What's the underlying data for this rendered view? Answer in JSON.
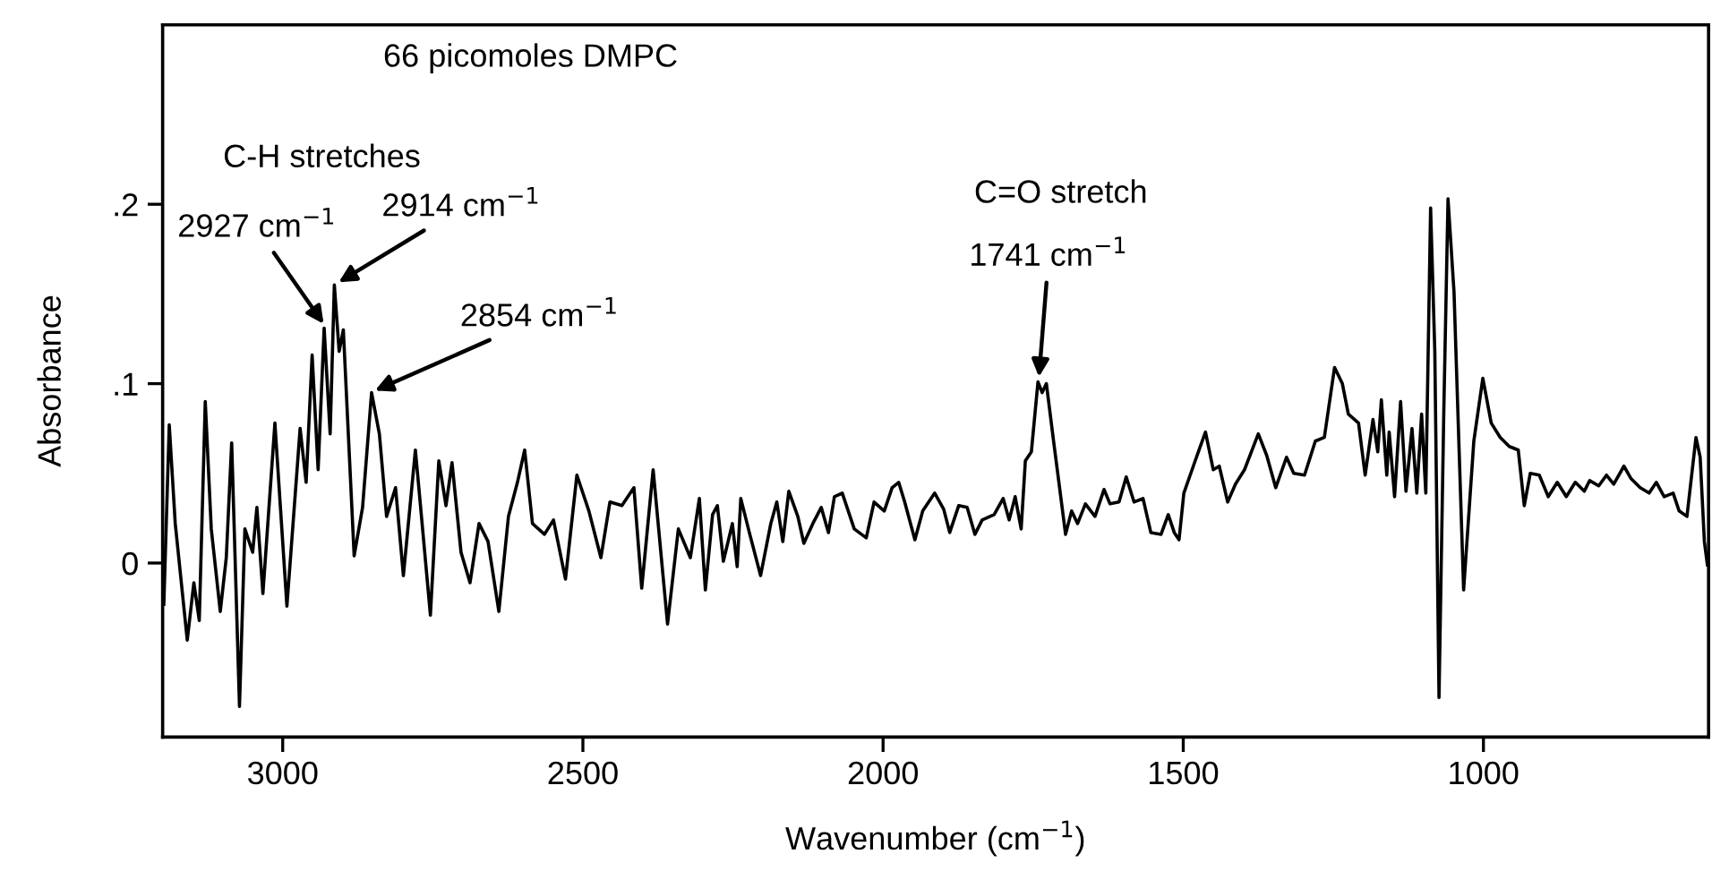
{
  "chart_data": {
    "type": "line",
    "xlabel": "Wavenumber (cm$^{−1}$)",
    "ylabel": "Absorbance",
    "x": [
      3198,
      3189,
      3179,
      3159,
      3148,
      3139,
      3129,
      3119,
      3104,
      3094,
      3085,
      3072,
      3063,
      3050,
      3043,
      3033,
      3013,
      3004,
      2993,
      2971,
      2961,
      2951,
      2941,
      2931,
      2921,
      2914,
      2906,
      2899,
      2881,
      2867,
      2852,
      2839,
      2827,
      2812,
      2799,
      2779,
      2767,
      2754,
      2740,
      2728,
      2718,
      2703,
      2688,
      2673,
      2658,
      2640,
      2624,
      2609,
      2597,
      2584,
      2564,
      2549,
      2529,
      2510,
      2490,
      2470,
      2455,
      2435,
      2415,
      2402,
      2383,
      2359,
      2341,
      2321,
      2306,
      2296,
      2284,
      2276,
      2266,
      2251,
      2243,
      2237,
      2222,
      2204,
      2187,
      2177,
      2167,
      2157,
      2142,
      2132,
      2117,
      2103,
      2091,
      2081,
      2068,
      2048,
      2028,
      2015,
      1998,
      1985,
      1974,
      1964,
      1947,
      1934,
      1914,
      1899,
      1889,
      1874,
      1860,
      1847,
      1835,
      1815,
      1800,
      1790,
      1780,
      1770,
      1763,
      1753,
      1742,
      1735,
      1728,
      1716,
      1696,
      1686,
      1676,
      1663,
      1647,
      1632,
      1622,
      1607,
      1595,
      1582,
      1567,
      1554,
      1537,
      1525,
      1515,
      1507,
      1499,
      1478,
      1463,
      1450,
      1440,
      1426,
      1413,
      1398,
      1375,
      1361,
      1346,
      1328,
      1316,
      1298,
      1280,
      1265,
      1248,
      1235,
      1225,
      1208,
      1197,
      1184,
      1176,
      1170,
      1161,
      1157,
      1148,
      1138,
      1129,
      1119,
      1111,
      1103,
      1096,
      1088,
      1081,
      1074,
      1066,
      1059,
      1049,
      1033,
      1016,
      1001,
      987,
      972,
      957,
      942,
      932,
      922,
      907,
      892,
      877,
      862,
      847,
      832,
      823,
      808,
      795,
      783,
      766,
      754,
      739,
      724,
      712,
      699,
      684,
      674,
      661,
      646,
      639,
      632,
      627
    ],
    "series": [
      {
        "color": "#000000",
        "values": [
          -0.023,
          0.077,
          0.022,
          -0.043,
          -0.011,
          -0.032,
          0.09,
          0.019,
          -0.027,
          0.003,
          0.067,
          -0.08,
          0.019,
          0.006,
          0.031,
          -0.017,
          0.078,
          0.032,
          -0.024,
          0.075,
          0.045,
          0.116,
          0.052,
          0.131,
          0.072,
          0.155,
          0.118,
          0.13,
          0.004,
          0.031,
          0.095,
          0.072,
          0.026,
          0.042,
          -0.007,
          0.063,
          0.019,
          -0.029,
          0.057,
          0.032,
          0.056,
          0.006,
          -0.011,
          0.022,
          0.012,
          -0.027,
          0.026,
          0.045,
          0.063,
          0.022,
          0.016,
          0.024,
          -0.009,
          0.049,
          0.029,
          0.003,
          0.034,
          0.032,
          0.042,
          -0.014,
          0.052,
          -0.034,
          0.019,
          0.003,
          0.036,
          -0.015,
          0.027,
          0.032,
          0.001,
          0.022,
          -0.002,
          0.036,
          0.016,
          -0.007,
          0.022,
          0.034,
          0.012,
          0.04,
          0.026,
          0.011,
          0.022,
          0.031,
          0.017,
          0.037,
          0.039,
          0.019,
          0.014,
          0.034,
          0.029,
          0.042,
          0.045,
          0.034,
          0.013,
          0.029,
          0.039,
          0.03,
          0.017,
          0.032,
          0.031,
          0.016,
          0.024,
          0.027,
          0.036,
          0.024,
          0.037,
          0.019,
          0.057,
          0.062,
          0.101,
          0.095,
          0.1,
          0.068,
          0.016,
          0.029,
          0.022,
          0.033,
          0.026,
          0.041,
          0.033,
          0.034,
          0.048,
          0.034,
          0.036,
          0.017,
          0.016,
          0.027,
          0.017,
          0.013,
          0.039,
          0.059,
          0.073,
          0.052,
          0.054,
          0.034,
          0.044,
          0.052,
          0.072,
          0.06,
          0.042,
          0.059,
          0.05,
          0.049,
          0.068,
          0.07,
          0.109,
          0.1,
          0.083,
          0.078,
          0.049,
          0.08,
          0.062,
          0.091,
          0.049,
          0.073,
          0.037,
          0.09,
          0.04,
          0.075,
          0.039,
          0.083,
          0.039,
          0.198,
          0.118,
          -0.075,
          0.085,
          0.203,
          0.151,
          -0.015,
          0.068,
          0.103,
          0.078,
          0.07,
          0.065,
          0.063,
          0.032,
          0.05,
          0.049,
          0.037,
          0.045,
          0.037,
          0.045,
          0.04,
          0.046,
          0.043,
          0.049,
          0.044,
          0.054,
          0.047,
          0.042,
          0.039,
          0.045,
          0.037,
          0.039,
          0.029,
          0.026,
          0.07,
          0.059,
          0.012,
          -0.001
        ]
      }
    ],
    "xlim": [
      3200,
      625
    ],
    "ylim": [
      -0.097,
      0.3
    ],
    "xticks": [
      3000,
      2500,
      2000,
      1500,
      1000
    ],
    "yticks": [
      {
        "value": 0.2,
        "label": ".2"
      },
      {
        "value": 0.1,
        "label": ".1"
      },
      0
    ],
    "annotations": [
      "66 picomoles DMPC",
      "C-H stretches",
      "C=O stretch",
      {
        "text": "2927 cm$^{−1}$",
        "x": 2927,
        "y": 0.131
      },
      {
        "text": "2914 cm$^{−1}$",
        "x": 2914,
        "y": 0.155
      },
      {
        "text": "2854 cm$^{−1}$",
        "x": 2854,
        "y": 0.095
      },
      {
        "text": "1741 cm$^{−1}$",
        "x": 1741,
        "y": 0.101
      }
    ]
  }
}
